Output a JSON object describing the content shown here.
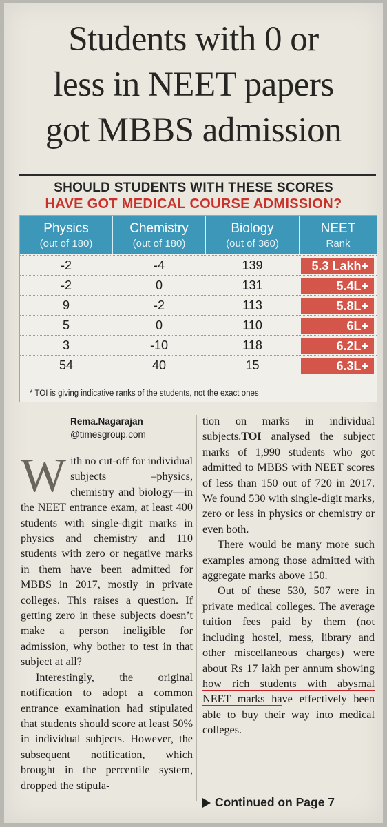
{
  "headline": [
    "Students with 0 or",
    "less in NEET papers",
    "got MBBS admission"
  ],
  "kicker": {
    "line1": "SHOULD STUDENTS WITH THESE SCORES",
    "line2": "HAVE GOT MEDICAL COURSE ADMISSION?"
  },
  "table": {
    "headers": [
      {
        "title": "Physics",
        "sub": "(out of 180)"
      },
      {
        "title": "Chemistry",
        "sub": "(out of 180)"
      },
      {
        "title": "Biology",
        "sub": "(out of 360)"
      },
      {
        "title": "NEET",
        "sub": "Rank"
      }
    ],
    "rows": [
      {
        "physics": "-2",
        "chemistry": "-4",
        "biology": "139",
        "rank": "5.3 Lakh+"
      },
      {
        "physics": "-2",
        "chemistry": "0",
        "biology": "131",
        "rank": "5.4L+"
      },
      {
        "physics": "9",
        "chemistry": "-2",
        "biology": "113",
        "rank": "5.8L+"
      },
      {
        "physics": "5",
        "chemistry": "0",
        "biology": "110",
        "rank": "6L+"
      },
      {
        "physics": "3",
        "chemistry": "-10",
        "biology": "118",
        "rank": "6.2L+"
      },
      {
        "physics": "54",
        "chemistry": "40",
        "biology": "15",
        "rank": "6.3L+"
      }
    ],
    "footnote": "* TOI is giving indicative ranks of the students, not the exact ones"
  },
  "byline": {
    "name": "Rema.Nagarajan",
    "handle": "@timesgroup.com"
  },
  "colors": {
    "header_blue": "#3d97b9",
    "rank_red": "#d4564a",
    "kicker_red": "#c8322a",
    "underline_red": "#cc2025"
  },
  "article": {
    "dropcap": "W",
    "p1": "ith no cut-off for individual subjects –physics, chemistry and biology—in the NEET entrance exam, at least 400 students with single-digit marks in physics and chemistry and 110 students with zero or negative marks in them have been admitted for MBBS in 2017, mostly in private colleges. This raises a question. If getting zero in these subjects doesn’t make a person ineligible for admission, why bother to test in that subject at all?",
    "p2": "Interestingly, the original notification to adopt a common entrance examination had stipulated that students should score at least 50% in individual subjects. However, the subsequent notification, which brought in the percentile system, dropped the stipula-",
    "p3_pre": "tion on marks in individual subjects.",
    "p3_toi": "TOI",
    "p3_post": " analysed the subject marks of 1,990 students who got admitted to MBBS with NEET scores of less than 150 out of 720 in 2017. We found 530 with single-digit marks, zero or less in physics or chemistry or even both.",
    "p4": "There would be many more such examples among those admitted with aggregate marks above 150.",
    "p5_pre": "Out of these 530, 507 were in private medical colleges. The average tuition fees paid by them (not including hostel, mess, library and other miscellaneous charges) were about Rs 17 lakh per annum showing ",
    "p5_underlined": "how rich students with abysmal NEET marks ha",
    "p5_post": "ve effectively been able to buy their way into medical colleges.",
    "continued": "Continued on Page 7"
  }
}
